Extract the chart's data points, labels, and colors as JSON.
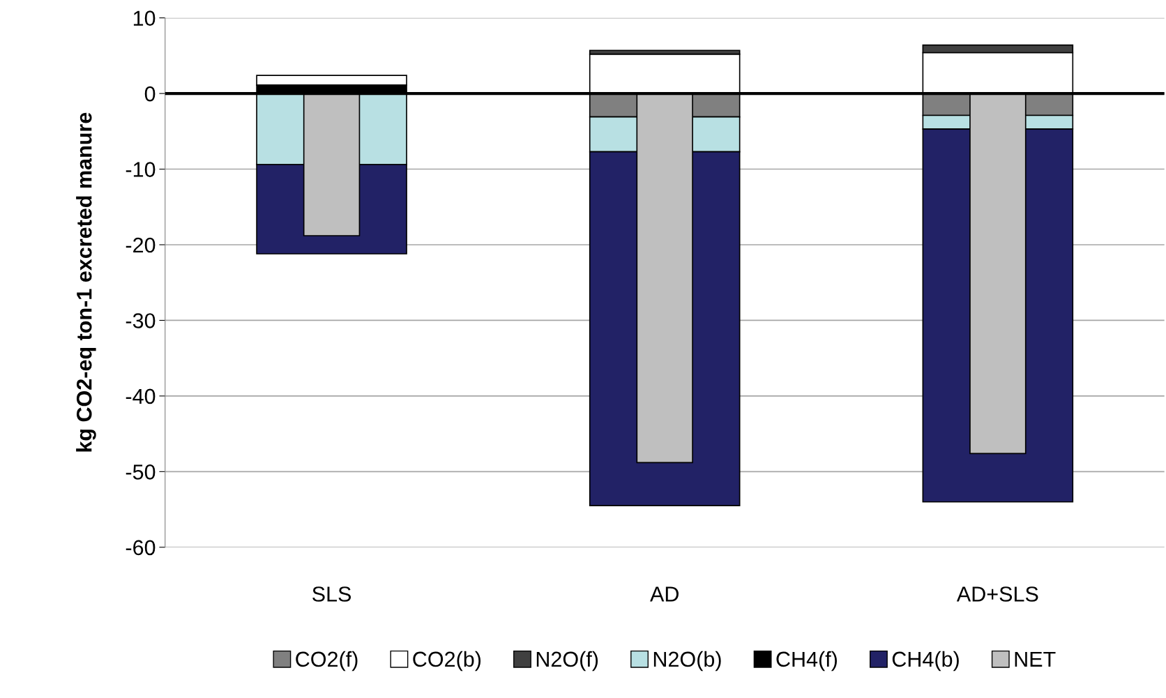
{
  "chart_data": {
    "type": "bar",
    "ylabel": "kg CO2-eq ton-1 excreted manure",
    "categories": [
      "SLS",
      "AD",
      "AD+SLS"
    ],
    "series": [
      {
        "name": "CO2(f)",
        "color": "#808080",
        "values": [
          null,
          -3.1,
          -2.9
        ],
        "base": [
          null,
          0,
          0
        ]
      },
      {
        "name": "CO2(b)",
        "color": "#ffffff",
        "values": [
          1.3,
          5.2,
          5.4
        ],
        "base": [
          1.1,
          0,
          0
        ]
      },
      {
        "name": "N2O(f)",
        "color": "#404040",
        "values": [
          null,
          0.5,
          1.0
        ],
        "base": [
          null,
          5.2,
          5.4
        ]
      },
      {
        "name": "N2O(b)",
        "color": "#b8e0e3",
        "values": [
          -9.4,
          -4.6,
          -1.8
        ],
        "base": [
          0,
          -3.1,
          -2.9
        ]
      },
      {
        "name": "CH4(f)",
        "color": "#000000",
        "values": [
          1.1,
          null,
          null
        ],
        "base": [
          0,
          null,
          null
        ]
      },
      {
        "name": "CH4(b)",
        "color": "#222266",
        "values": [
          -11.8,
          -46.8,
          -49.3
        ],
        "base": [
          -9.4,
          -7.7,
          -4.7
        ]
      },
      {
        "name": "NET",
        "color": "#bfbfbf",
        "values": [
          -18.8,
          -48.8,
          -47.6
        ]
      }
    ],
    "ylim": [
      -60,
      10
    ],
    "yticks": [
      -60,
      -50,
      -40,
      -30,
      -20,
      -10,
      0,
      10
    ],
    "grid": "y",
    "legend": "bottom",
    "ref_lines": [
      {
        "axis": "y",
        "value": 0,
        "color": "#000000"
      }
    ]
  }
}
